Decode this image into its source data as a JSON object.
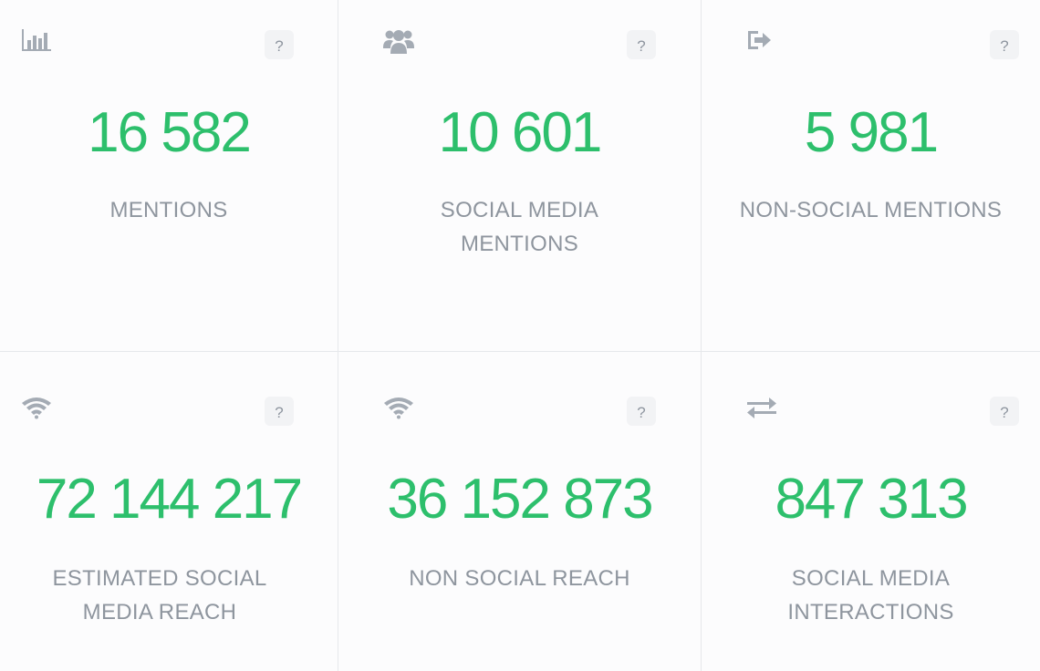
{
  "cards": [
    {
      "icon": "bar-chart-icon",
      "help_label": "?",
      "value": "16 582",
      "label": "MENTIONS"
    },
    {
      "icon": "users-group-icon",
      "help_label": "?",
      "value": "10 601",
      "label": "SOCIAL MEDIA MENTIONS"
    },
    {
      "icon": "sign-out-arrow-icon",
      "help_label": "?",
      "value": "5 981",
      "label": "NON-SOCIAL MENTIONS"
    },
    {
      "icon": "wifi-icon",
      "help_label": "?",
      "value": "72 144 217",
      "label": "ESTIMATED SOCIAL MEDIA REACH"
    },
    {
      "icon": "wifi-icon",
      "help_label": "?",
      "value": "36 152 873",
      "label": "NON SOCIAL REACH"
    },
    {
      "icon": "exchange-arrows-icon",
      "help_label": "?",
      "value": "847 313",
      "label": "SOCIAL MEDIA INTERACTIONS"
    }
  ],
  "colors": {
    "value": "#2dbf6c",
    "label": "#8e959e",
    "icon": "#a4abb4",
    "border": "#e6e8eb",
    "background": "#fcfcfd"
  }
}
